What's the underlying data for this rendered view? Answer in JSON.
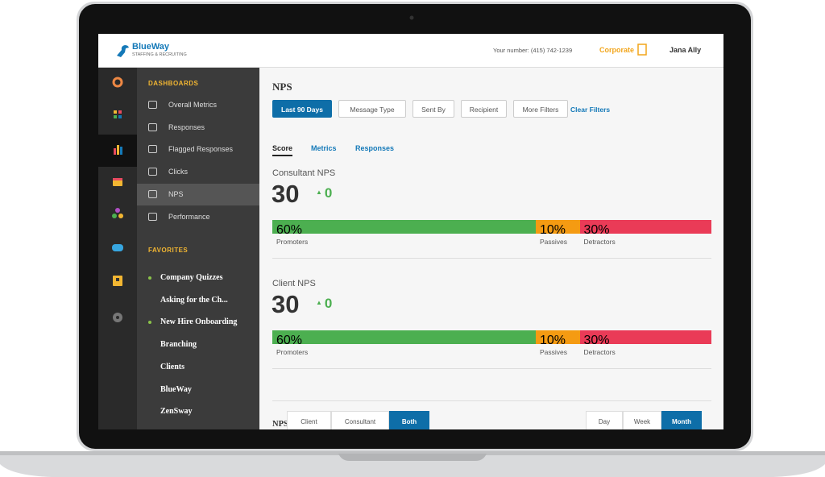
{
  "header": {
    "brand": "BlueWay",
    "tagline": "STAFFING & RECRUITING",
    "phone": "Your number: (415) 742-1239",
    "org": "Corporate",
    "user": "Jana Ally"
  },
  "sidebar": {
    "dashboards_heading": "DASHBOARDS",
    "dashboards": [
      "Overall Metrics",
      "Responses",
      "Flagged Responses",
      "Clicks",
      "NPS",
      "Performance"
    ],
    "favorites_heading": "FAVORITES",
    "favorites": [
      {
        "name": "Company Quizzes",
        "dot": true
      },
      {
        "name": "Asking for the Ch...",
        "dot": false
      },
      {
        "name": "New Hire Onboarding",
        "dot": true
      },
      {
        "name": "Branching",
        "dot": false
      },
      {
        "name": "Clients",
        "dot": false
      },
      {
        "name": "BlueWay",
        "dot": false
      },
      {
        "name": "ZenSway",
        "dot": false
      }
    ]
  },
  "main": {
    "title": "NPS",
    "filters": [
      "Last 90 Days",
      "Message Type",
      "Sent By",
      "Recipient",
      "More Filters"
    ],
    "clear_filters": "Clear Filters",
    "tabs": [
      "Score",
      "Metrics",
      "Responses"
    ],
    "sections": [
      {
        "label": "Consultant NPS",
        "score": 30,
        "change": 0,
        "segments": [
          {
            "name": "Promoters",
            "value": 60,
            "label": "60%",
            "color": "#4caf50"
          },
          {
            "name": "Passives",
            "value": 10,
            "label": "10%",
            "color": "#f59b12"
          },
          {
            "name": "Detractors",
            "value": 30,
            "label": "30%",
            "color": "#ea3b57"
          }
        ]
      },
      {
        "label": "Client NPS",
        "score": 30,
        "change": 0,
        "segments": [
          {
            "name": "Promoters",
            "value": 60,
            "label": "60%",
            "color": "#4caf50"
          },
          {
            "name": "Passives",
            "value": 10,
            "label": "10%",
            "color": "#f59b12"
          },
          {
            "name": "Detractors",
            "value": 30,
            "label": "30%",
            "color": "#ea3b57"
          }
        ]
      }
    ],
    "chart_title": "NPS Score Over Time",
    "audience_toggle": [
      "Client",
      "Consultant",
      "Both"
    ],
    "period_toggle": [
      "Day",
      "Week",
      "Month"
    ]
  }
}
